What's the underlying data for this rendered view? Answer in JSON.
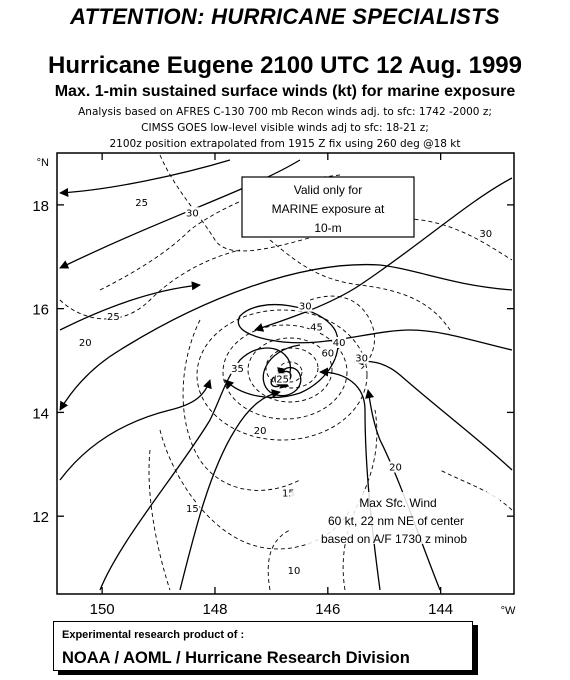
{
  "header": {
    "attention": "ATTENTION: HURRICANE SPECIALISTS",
    "title": "Hurricane Eugene 2100 UTC 12 Aug. 1999",
    "subtitle": "Max. 1-min sustained surface winds (kt) for marine exposure",
    "notes": [
      "Analysis based on AFRES C-130 700 mb Recon winds adj. to sfc: 1742 -2000 z;",
      "CIMSS GOES low-level visible winds adj to sfc: 18-21 z;",
      "2100z position extrapolated from  1915 Z fix  using 260 deg @18 kt"
    ]
  },
  "map": {
    "lon_ticks": [
      "150",
      "148",
      "146",
      "144"
    ],
    "lon_unit": "°W",
    "lat_ticks": [
      "18",
      "16",
      "14",
      "12"
    ],
    "lat_unit": "°N",
    "lon_range": [
      150.8,
      142.7
    ],
    "lat_range": [
      10.5,
      19.0
    ],
    "valid_box": [
      "Valid only for",
      "MARINE exposure at",
      "10-m"
    ],
    "max_wind_note": [
      "Max Sfc. Wind",
      "60 kt, 22 nm NE of center",
      "based on A/F 1730 z minob"
    ],
    "isotach_labels": [
      {
        "text": "25",
        "lon": 149.3,
        "lat": 18.0
      },
      {
        "text": "30",
        "lon": 148.4,
        "lat": 17.8
      },
      {
        "text": "30",
        "lon": 143.2,
        "lat": 17.4
      },
      {
        "text": "30",
        "lon": 146.4,
        "lat": 16.0
      },
      {
        "text": "25",
        "lon": 149.8,
        "lat": 15.8
      },
      {
        "text": "20",
        "lon": 150.3,
        "lat": 15.3
      },
      {
        "text": "35",
        "lon": 147.6,
        "lat": 14.8
      },
      {
        "text": "40",
        "lon": 145.8,
        "lat": 15.3
      },
      {
        "text": "45",
        "lon": 146.2,
        "lat": 15.6
      },
      {
        "text": "60",
        "lon": 146.0,
        "lat": 15.1
      },
      {
        "text": "30",
        "lon": 145.4,
        "lat": 15.0
      },
      {
        "text": "25",
        "lon": 146.8,
        "lat": 14.6
      },
      {
        "text": "20",
        "lon": 147.2,
        "lat": 13.6
      },
      {
        "text": "15",
        "lon": 146.7,
        "lat": 12.4
      },
      {
        "text": "15",
        "lon": 148.4,
        "lat": 12.1
      },
      {
        "text": "20",
        "lon": 144.8,
        "lat": 12.9
      },
      {
        "text": "10",
        "lon": 146.6,
        "lat": 10.9
      }
    ]
  },
  "credit": {
    "line1": "Experimental research product of :",
    "line2": "NOAA / AOML / Hurricane Research Division"
  },
  "colors": {
    "lines": "#000000",
    "background": "#ffffff"
  }
}
